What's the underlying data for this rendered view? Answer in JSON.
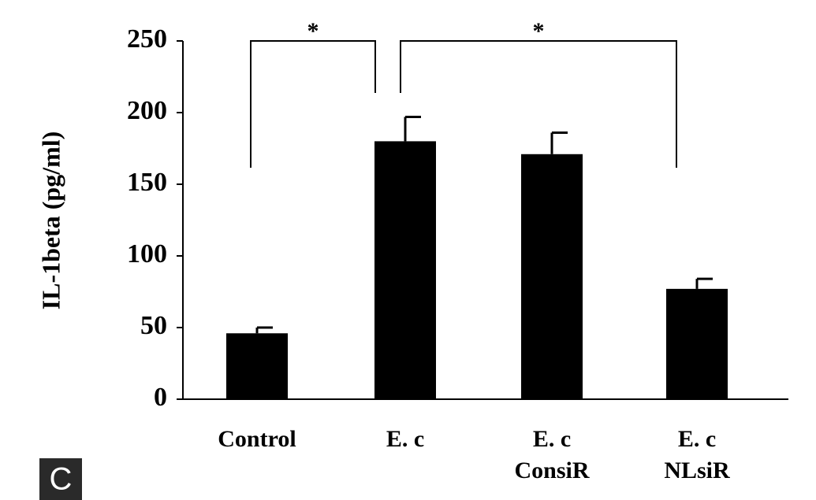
{
  "chart_data": {
    "type": "bar",
    "panel_label": "C",
    "y_label": "IL-1beta (pg/ml)",
    "categories": [
      "Control",
      "E. c",
      "E. c\nConsiR",
      "E. c\nNLsiR"
    ],
    "values": [
      46,
      180,
      171,
      77
    ],
    "errors": [
      4,
      17,
      15,
      7
    ],
    "color": "#000000",
    "ylim": [
      0,
      250
    ],
    "yticks": [
      0,
      50,
      100,
      150,
      200,
      250
    ],
    "annotations": [
      "*",
      "*"
    ]
  }
}
